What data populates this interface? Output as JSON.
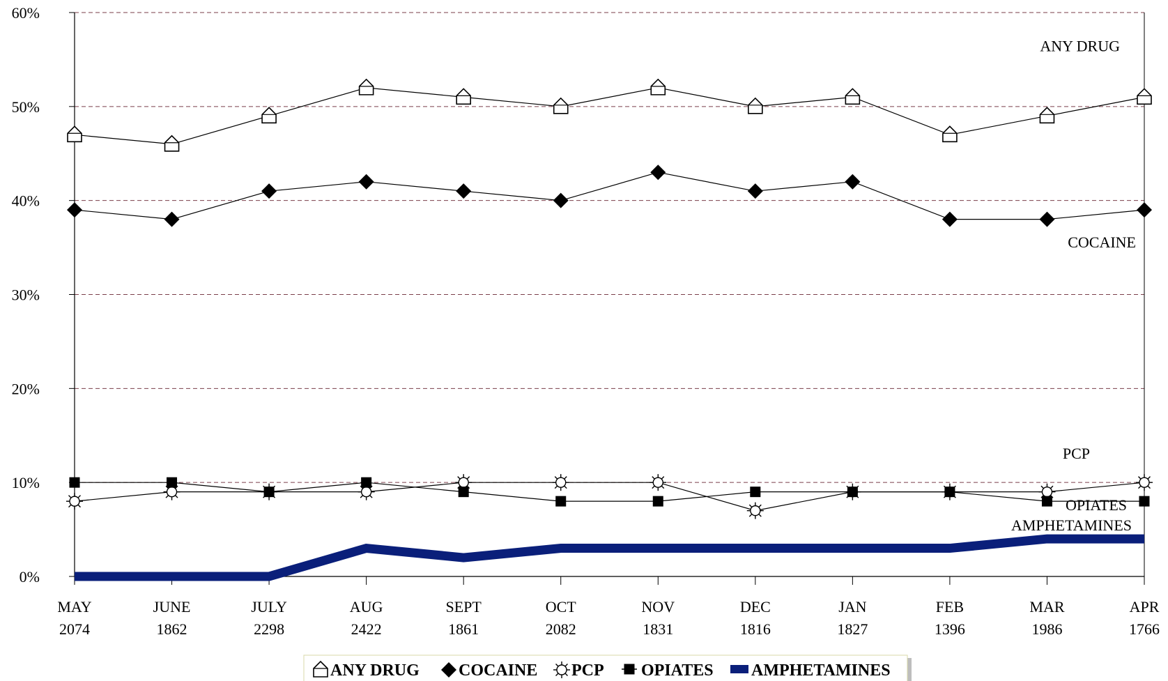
{
  "chart_data": {
    "type": "line",
    "categories": [
      "MAY",
      "JUNE",
      "JULY",
      "AUG",
      "SEPT",
      "OCT",
      "NOV",
      "DEC",
      "JAN",
      "FEB",
      "MAR",
      "APR"
    ],
    "category_counts": [
      "2074",
      "1862",
      "2298",
      "2422",
      "1861",
      "2082",
      "1831",
      "1816",
      "1827",
      "1396",
      "1986",
      "1766"
    ],
    "ylim": [
      0,
      60
    ],
    "y_ticks": [
      0,
      10,
      20,
      30,
      40,
      50,
      60
    ],
    "y_tick_labels": [
      "0%",
      "10%",
      "20%",
      "30%",
      "40%",
      "50%",
      "60%"
    ],
    "grid": true,
    "legend_position": "bottom-center",
    "series": [
      {
        "key": "any",
        "name": "ANY DRUG",
        "label": "ANY DRUG",
        "marker": "house-outline",
        "color": "#000000",
        "values": [
          47,
          46,
          49,
          52,
          51,
          50,
          52,
          50,
          51,
          47,
          49,
          51
        ]
      },
      {
        "key": "cocaine",
        "name": "COCAINE",
        "label": "COCAINE",
        "marker": "diamond-filled",
        "color": "#000000",
        "values": [
          39,
          38,
          41,
          42,
          41,
          40,
          43,
          41,
          42,
          38,
          38,
          39
        ]
      },
      {
        "key": "pcp",
        "name": "PCP",
        "label": "PCP",
        "marker": "sun-outline",
        "color": "#000000",
        "values": [
          8,
          9,
          9,
          9,
          10,
          10,
          10,
          7,
          9,
          9,
          9,
          10
        ]
      },
      {
        "key": "opiates",
        "name": "OPIATES",
        "label": "OPIATES",
        "marker": "square-filled",
        "color": "#000000",
        "values": [
          10,
          10,
          9,
          10,
          9,
          8,
          8,
          9,
          9,
          9,
          8,
          8
        ]
      },
      {
        "key": "amph",
        "name": "AMPHETAMINES",
        "label": "AMPHETAMINES",
        "marker": "none",
        "color": "#0a1f7a",
        "values": [
          0,
          0,
          0,
          3,
          2,
          3,
          3,
          3,
          3,
          3,
          4,
          4
        ]
      }
    ],
    "colors": {
      "gridline": "#7a3e4a",
      "axis": "#000000",
      "amphetamines": "#0a1f7a"
    }
  }
}
